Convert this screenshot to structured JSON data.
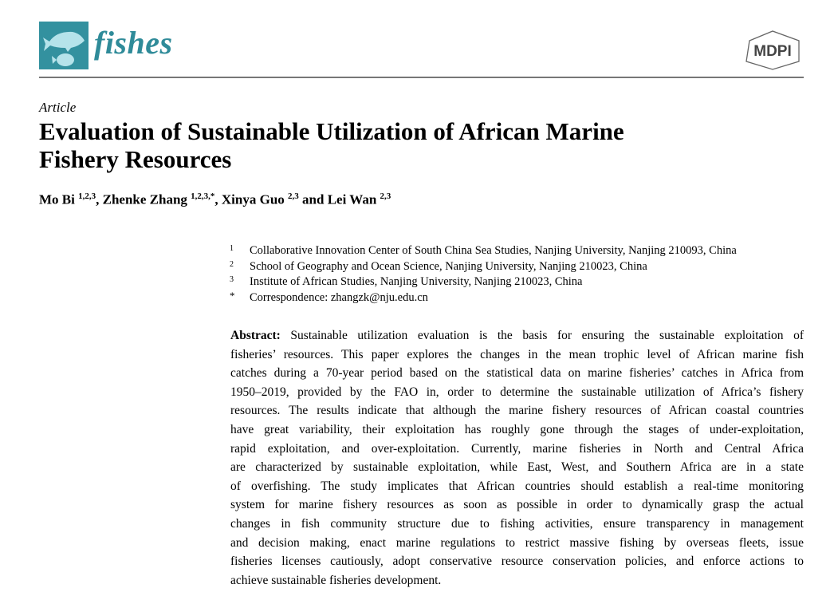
{
  "header": {
    "journal": "fishes",
    "publisher_logo": "MDPI",
    "brand_color": "#33919f"
  },
  "article_type": "Article",
  "title": "Evaluation of Sustainable Utilization of African Marine Fishery Resources",
  "title_lines": [
    "Evaluation of Sustainable Utilization of African Marine",
    "Fishery Resources"
  ],
  "authors": [
    {
      "name": "Mo Bi",
      "sup": "1,2,3",
      "sep": ", "
    },
    {
      "name": "Zhenke Zhang",
      "sup": "1,2,3,*",
      "sep": ", "
    },
    {
      "name": "Xinya Guo",
      "sup": "2,3",
      "sep": " and "
    },
    {
      "name": "Lei Wan",
      "sup": "2,3",
      "sep": ""
    }
  ],
  "affiliations": [
    {
      "num": "1",
      "text": "Collaborative Innovation Center of South China Sea Studies, Nanjing University, Nanjing 210093, China"
    },
    {
      "num": "2",
      "text": "School of Geography and Ocean Science, Nanjing University, Nanjing 210023, China"
    },
    {
      "num": "3",
      "text": "Institute of African Studies, Nanjing University, Nanjing 210023, China"
    },
    {
      "num": "*",
      "text": "Correspondence: zhangzk@nju.edu.cn"
    }
  ],
  "abstract": {
    "label": "Abstract:",
    "lines": [
      " Sustainable utilization evaluation is the basis for ensuring the sustainable exploitation of",
      "fisheries’ resources. This paper explores the changes in the mean trophic level of African marine fish",
      "catches during a 70-year period based on the statistical data on marine fisheries’ catches in Africa from",
      "1950–2019, provided by the FAO in, order to determine the sustainable utilization of Africa’s fishery",
      "resources. The results indicate that although the marine fishery resources of African coastal countries",
      "have great variability, their exploitation has roughly gone through the stages of under-exploitation,",
      "rapid exploitation, and over-exploitation. Currently, marine fisheries in North and Central Africa",
      "are characterized by sustainable exploitation, while East, West, and Southern Africa are in a state",
      "of overfishing. The study implicates that African countries should establish a real-time monitoring",
      "system for marine fishery resources as soon as possible in order to dynamically grasp the actual",
      "changes in fish community structure due to fishing activities, ensure transparency in management",
      "and decision making, enact marine regulations to restrict massive fishing by overseas fleets, issue",
      "fisheries licenses cautiously, adopt conservative resource conservation policies, and enforce actions to",
      "achieve sustainable fisheries development."
    ]
  }
}
